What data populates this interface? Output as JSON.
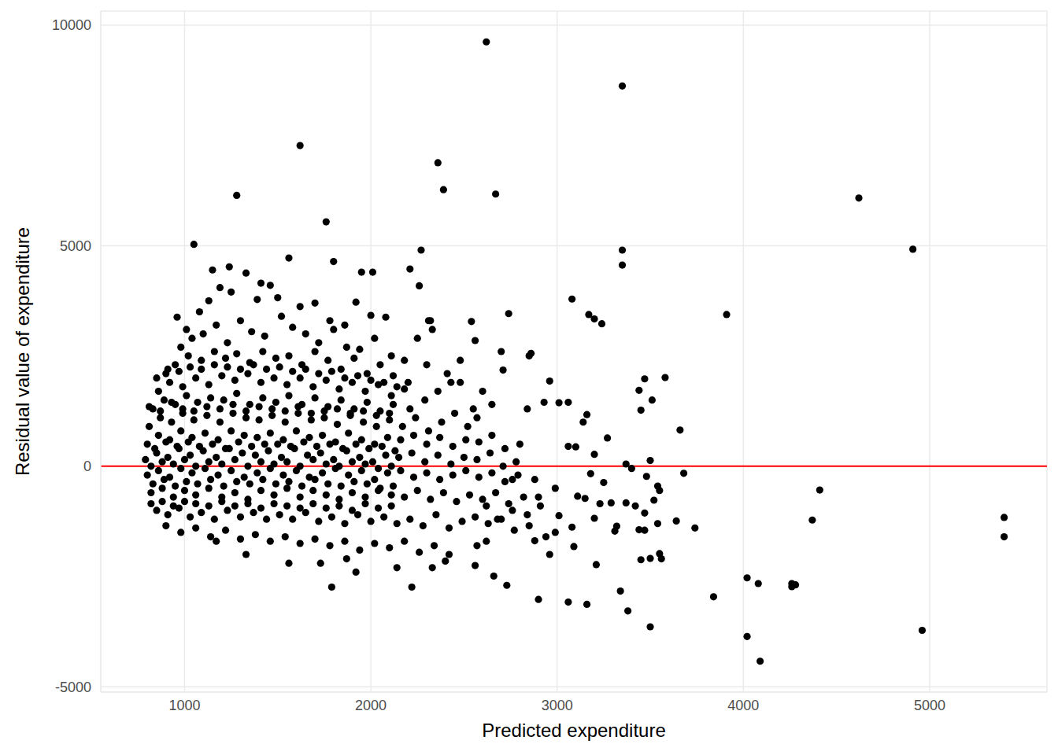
{
  "chart_data": {
    "type": "scatter",
    "xlabel": "Predicted expenditure",
    "ylabel": "Residual value of expenditure",
    "color": "#000000",
    "xlim": [
      550,
      5630
    ],
    "ylim": [
      -5120,
      10320
    ],
    "xticks": [
      1000,
      2000,
      3000,
      4000,
      5000
    ],
    "yticks": [
      -5000,
      0,
      5000,
      10000
    ],
    "grid": true,
    "reference_line": {
      "y": 0,
      "color": "#ff0000"
    },
    "x": [
      960,
      1010,
      1080,
      1130,
      1190,
      1250,
      1330,
      1410,
      1500,
      1620,
      1700,
      1780,
      1860,
      1920,
      2000,
      2080,
      1150,
      1240,
      1390,
      1460,
      980,
      1040,
      1100,
      1170,
      1230,
      1300,
      1360,
      1430,
      1520,
      1580,
      1650,
      1720,
      1800,
      1870,
      1940,
      2020,
      2110,
      2180,
      2250,
      2310,
      900,
      950,
      1020,
      1090,
      1160,
      1220,
      1280,
      1350,
      1420,
      1490,
      1560,
      1630,
      1700,
      1770,
      1840,
      1910,
      1980,
      2050,
      2120,
      2200,
      860,
      920,
      990,
      1060,
      1130,
      1200,
      1270,
      1340,
      1410,
      1480,
      1550,
      1620,
      1690,
      1760,
      1830,
      1900,
      1970,
      2040,
      2110,
      2180,
      830,
      890,
      950,
      1010,
      1070,
      1140,
      1210,
      1280,
      1350,
      1420,
      1490,
      1560,
      1630,
      1700,
      1770,
      1840,
      1910,
      1980,
      2050,
      2120,
      810,
      870,
      930,
      990,
      1050,
      1120,
      1190,
      1260,
      1330,
      1400,
      1470,
      1540,
      1610,
      1680,
      1750,
      1820,
      1890,
      1960,
      2030,
      2100,
      2170,
      2240,
      2310,
      2380,
      2450,
      2520,
      2210,
      2290,
      2360,
      2430,
      800,
      860,
      920,
      980,
      1040,
      1110,
      1180,
      1250,
      1320,
      1390,
      1460,
      1530,
      1600,
      1670,
      1740,
      1810,
      1880,
      1950,
      2020,
      2090,
      2160,
      2230,
      2300,
      2370,
      2440,
      2510,
      2580,
      2650,
      2720,
      2800,
      790,
      850,
      910,
      970,
      1030,
      1100,
      1170,
      1240,
      1310,
      1380,
      1450,
      1520,
      1590,
      1660,
      1730,
      1800,
      1870,
      1940,
      2010,
      2080,
      2150,
      2220,
      2290,
      2360,
      2430,
      2500,
      2570,
      2640,
      2710,
      2780,
      800,
      860,
      920,
      980,
      1040,
      1110,
      1180,
      1250,
      1320,
      1390,
      1460,
      1530,
      1600,
      1670,
      1740,
      1810,
      1880,
      1950,
      2020,
      2090,
      2160,
      2230,
      2300,
      2370,
      2440,
      2510,
      2580,
      2650,
      2720,
      2790,
      820,
      880,
      940,
      1000,
      1060,
      1130,
      1200,
      1270,
      1340,
      1410,
      1480,
      1550,
      1620,
      1690,
      1760,
      1830,
      1900,
      1970,
      2040,
      2110,
      2180,
      2250,
      2320,
      2390,
      2460,
      2530,
      2600,
      2670,
      2740,
      2820,
      850,
      910,
      970,
      1030,
      1090,
      1160,
      1230,
      1300,
      1370,
      1440,
      1510,
      1580,
      1650,
      1720,
      1790,
      1860,
      1930,
      2000,
      2070,
      2140,
      2210,
      2280,
      2350,
      2420,
      2490,
      2560,
      2630,
      2700,
      2770,
      2850,
      900,
      980,
      1060,
      1140,
      1220,
      1300,
      1380,
      1460,
      1540,
      1620,
      1700,
      1780,
      1860,
      1940,
      2020,
      2100,
      2180,
      2260,
      2340,
      2420,
      1170,
      1330,
      1560,
      1730,
      1870,
      1920,
      2140,
      2330,
      2400,
      2560,
      830,
      890,
      950,
      1010,
      1070,
      1140,
      1210,
      1280,
      1350,
      1420,
      1490,
      1560,
      1630,
      1700,
      1770,
      1840,
      1910,
      1980,
      2050,
      2120,
      820,
      880,
      940,
      1000,
      1060,
      1130,
      1200,
      1270,
      1340,
      1410,
      1480,
      1550,
      1620,
      1690,
      1760,
      1830,
      1900,
      1970,
      2040,
      2110,
      810,
      870,
      930,
      990,
      1050,
      1120,
      1190,
      1260,
      1330,
      1400,
      1470,
      1540,
      1610,
      1680,
      1750,
      1820,
      1890,
      1960,
      2030,
      2100,
      840,
      900,
      960,
      1020,
      1080,
      1150,
      1220,
      1290,
      1360,
      1430,
      1500,
      1570,
      1640,
      1710,
      1780,
      1850,
      1920,
      1990,
      2060,
      2130,
      820,
      880,
      940,
      1000,
      1060,
      1130,
      1200,
      1270,
      1340,
      1410,
      1480,
      1550,
      1620,
      1690,
      1760,
      1830,
      1900,
      1970,
      2040,
      2110,
      850,
      910,
      970,
      1030,
      1090,
      1160,
      1230,
      1300,
      1370,
      1440,
      1510,
      1580,
      1650,
      1720,
      1790,
      1860,
      1930,
      2000,
      2070,
      2140,
      2620,
      3350,
      1620,
      2360,
      2390,
      2670,
      1280,
      4620,
      1760,
      1050,
      3350,
      4910,
      3350,
      1560,
      2270,
      1800,
      3910,
      3080,
      3170,
      3200,
      3240,
      2740,
      2210,
      2260,
      1950,
      2010,
      3470,
      3580,
      3440,
      3510,
      3450,
      3660,
      3680,
      3370,
      3500,
      3400,
      4410,
      4370,
      5400,
      5400,
      3640,
      3740,
      3440,
      3470,
      3840,
      4020,
      4080,
      4260,
      4260,
      4280,
      4020,
      4090,
      4960,
      3500,
      3380,
      3340,
      3160,
      3060,
      2900,
      2730,
      2660,
      2220,
      1790,
      3210,
      3500,
      3450,
      3560,
      3550,
      3310,
      3200,
      3150,
      3230,
      3290,
      3250,
      3320,
      3370,
      3420,
      3520,
      3540,
      3470,
      3550,
      3480,
      3540,
      3090,
      2960,
      2880,
      3010,
      3080,
      3110,
      3060,
      3100,
      3010,
      3060,
      2960,
      2930,
      3140,
      3160,
      3200,
      3270,
      3180,
      2850,
      2860,
      2840,
      2700,
      2710,
      2560,
      2540,
      2600,
      2650,
      2480,
      2550,
      2570,
      2480,
      2410,
      2320,
      2330,
      2300,
      2880,
      2910,
      2990,
      2620,
      2680,
      2760,
      2900,
      2940,
      2990,
      2570,
      2620,
      2760,
      2840
    ],
    "values": [
      3380,
      3100,
      3500,
      3750,
      4050,
      3950,
      4380,
      4150,
      3820,
      3620,
      3700,
      3300,
      3200,
      3720,
      3420,
      3380,
      4450,
      4520,
      3780,
      4100,
      2700,
      2900,
      3000,
      3200,
      2800,
      3300,
      3050,
      2950,
      3400,
      3150,
      3000,
      2800,
      3100,
      2700,
      2650,
      2900,
      2500,
      2400,
      2900,
      3300,
      2100,
      2300,
      2500,
      2400,
      2600,
      2450,
      2550,
      2350,
      2600,
      2450,
      2500,
      2300,
      2600,
      2400,
      2200,
      2450,
      2100,
      2300,
      2050,
      1900,
      1700,
      1900,
      1800,
      2000,
      1850,
      2050,
      1950,
      2100,
      1900,
      2000,
      1850,
      2000,
      1800,
      1950,
      1750,
      1900,
      1700,
      1850,
      1600,
      1750,
      1300,
      1500,
      1400,
      1600,
      1450,
      1550,
      1500,
      1650,
      1400,
      1550,
      1450,
      1600,
      1400,
      1550,
      1350,
      1500,
      1300,
      1450,
      1250,
      1400,
      900,
      1100,
      1000,
      1200,
      1050,
      1150,
      1000,
      1200,
      1100,
      1050,
      1150,
      1000,
      1200,
      1050,
      1100,
      950,
      1150,
      1000,
      900,
      1050,
      900,
      1100,
      800,
      1000,
      1200,
      900,
      1300,
      1500,
      1700,
      1900,
      500,
      700,
      600,
      800,
      650,
      750,
      600,
      800,
      700,
      650,
      750,
      600,
      800,
      650,
      700,
      550,
      750,
      600,
      500,
      650,
      600,
      700,
      500,
      650,
      450,
      600,
      550,
      700,
      400,
      500,
      150,
      300,
      200,
      400,
      250,
      350,
      200,
      400,
      300,
      250,
      350,
      200,
      400,
      250,
      300,
      150,
      350,
      200,
      100,
      250,
      200,
      300,
      100,
      250,
      50,
      200,
      150,
      300,
      0,
      100,
      -200,
      -100,
      -250,
      -50,
      -150,
      -50,
      -200,
      -100,
      -250,
      -150,
      -50,
      -200,
      -100,
      -250,
      -150,
      -50,
      -200,
      -100,
      -300,
      -150,
      -100,
      -250,
      -150,
      -300,
      -200,
      -100,
      -250,
      -150,
      -350,
      -200,
      -600,
      -500,
      -700,
      -550,
      -650,
      -500,
      -700,
      -600,
      -750,
      -550,
      -650,
      -500,
      -700,
      -550,
      -650,
      -750,
      -600,
      -700,
      -550,
      -650,
      -700,
      -550,
      -750,
      -600,
      -800,
      -650,
      -750,
      -600,
      -850,
      -700,
      -1000,
      -1100,
      -950,
      -1150,
      -1050,
      -1200,
      -1000,
      -1150,
      -1050,
      -1200,
      -1100,
      -1200,
      -1050,
      -1250,
      -1150,
      -1300,
      -1100,
      -1250,
      -1150,
      -1300,
      -1200,
      -1350,
      -1100,
      -1400,
      -1250,
      -1150,
      -1300,
      -1200,
      -1450,
      -1350,
      -1350,
      -1500,
      -1400,
      -1600,
      -1450,
      -1650,
      -1550,
      -1700,
      -1600,
      -1750,
      -1650,
      -1800,
      -1700,
      -1900,
      -1750,
      -1850,
      -1700,
      -1950,
      -1800,
      -2000,
      -1700,
      -2000,
      -2200,
      -2200,
      -2100,
      -2400,
      -2300,
      -2300,
      -2150,
      -2250,
      -400,
      -300,
      -450,
      -350,
      -400,
      -300,
      -450,
      -350,
      -400,
      -300,
      -400,
      -350,
      -450,
      -300,
      -400,
      -450,
      -350,
      -400,
      -500,
      -450,
      -850,
      -800,
      -900,
      -800,
      -850,
      -900,
      -800,
      -900,
      -850,
      -950,
      -850,
      -900,
      -950,
      -850,
      -950,
      -900,
      -1000,
      -850,
      -950,
      -900,
      1350,
      1250,
      1450,
      1300,
      1250,
      1350,
      1300,
      1400,
      1250,
      1350,
      1300,
      1250,
      1350,
      1200,
      1250,
      1300,
      1200,
      1250,
      1150,
      1200,
      400,
      550,
      450,
      550,
      450,
      500,
      400,
      550,
      450,
      500,
      500,
      450,
      550,
      450,
      500,
      400,
      500,
      400,
      450,
      350,
      0,
      100,
      50,
      150,
      0,
      100,
      50,
      150,
      0,
      100,
      50,
      100,
      0,
      150,
      50,
      0,
      100,
      50,
      -50,
      0,
      2000,
      2200,
      2150,
      2250,
      2200,
      2300,
      2250,
      2200,
      2300,
      2200,
      2250,
      2150,
      2200,
      2100,
      2150,
      2000,
      2050,
      1950,
      1900,
      1800,
      9620,
      8620,
      7270,
      6880,
      6270,
      6170,
      6140,
      6080,
      5540,
      5030,
      4900,
      4920,
      4560,
      4720,
      4900,
      4640,
      3440,
      3790,
      3440,
      3340,
      3230,
      3460,
      4470,
      4090,
      4400,
      4400,
      1980,
      2010,
      1720,
      1500,
      1270,
      820,
      -160,
      50,
      130,
      -50,
      -540,
      -1220,
      -1160,
      -1600,
      -1240,
      -1400,
      -1440,
      -1450,
      -2960,
      -2530,
      -2660,
      -2660,
      -2730,
      -2690,
      -3860,
      -4420,
      -3720,
      -3640,
      -3280,
      -2830,
      -3130,
      -3080,
      -3020,
      -2700,
      -2490,
      -2740,
      -2740,
      -2230,
      -2090,
      -2120,
      -2100,
      -1980,
      -1470,
      -1180,
      -730,
      -850,
      -830,
      -370,
      -1360,
      -830,
      -900,
      -770,
      -1300,
      -1060,
      -550,
      -230,
      -450,
      -1820,
      -2000,
      -1690,
      -1120,
      -1380,
      -680,
      450,
      440,
      1440,
      1450,
      1930,
      1450,
      1000,
      1170,
      270,
      640,
      -170,
      2500,
      2560,
      1300,
      2600,
      2180,
      2850,
      3280,
      1700,
      1400,
      2400,
      1300,
      1100,
      1900,
      2100,
      3300,
      3100,
      2300,
      -300,
      -900,
      -1500,
      -1700,
      -1200,
      -1000,
      -700,
      -1600,
      -500,
      -1800,
      -900,
      -300,
      -1100
    ]
  }
}
